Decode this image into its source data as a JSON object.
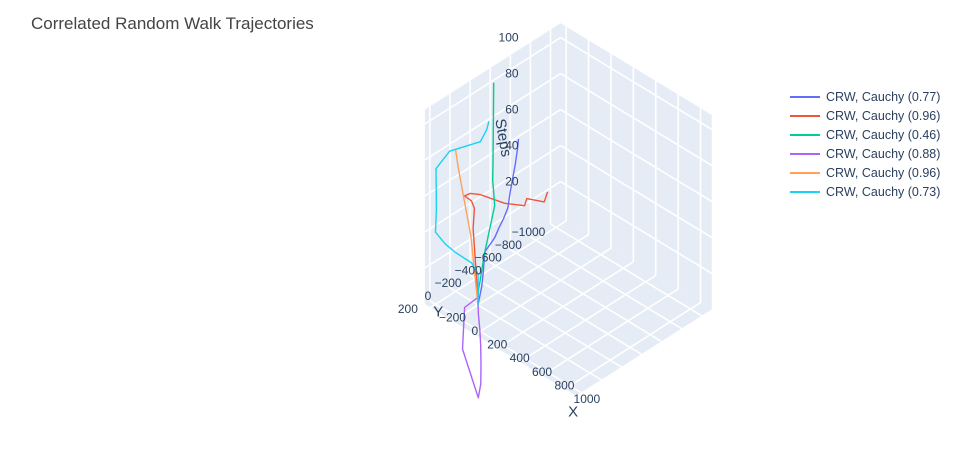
{
  "chart_data": {
    "type": "line3d",
    "title": "Correlated Random Walk Trajectories",
    "xlabel": "X",
    "ylabel": "Y",
    "zlabel": "Steps",
    "x_ticks": [
      "−200",
      "0",
      "200",
      "400",
      "600",
      "800",
      "1000"
    ],
    "y_ticks": [
      "−1000",
      "−800",
      "−600",
      "−400",
      "−200",
      "0",
      "200"
    ],
    "z_ticks": [
      "20",
      "40",
      "60",
      "80",
      "100"
    ],
    "scene_background": "#e5ecf6",
    "grid": true,
    "legend_position": "top-right",
    "series": [
      {
        "name": "CRW, Cauchy (0.77)",
        "color": "#636efa",
        "points": [
          [
            0,
            0,
            0
          ],
          [
            15,
            -20,
            10
          ],
          [
            20,
            -30,
            18
          ],
          [
            40,
            -15,
            25
          ],
          [
            60,
            -5,
            32
          ],
          [
            110,
            0,
            38
          ],
          [
            160,
            10,
            44
          ],
          [
            190,
            5,
            50
          ],
          [
            220,
            -10,
            56
          ],
          [
            240,
            -30,
            62
          ],
          [
            250,
            -40,
            70
          ],
          [
            260,
            -55,
            78
          ],
          [
            270,
            -70,
            86
          ],
          [
            280,
            -80,
            94
          ],
          [
            285,
            -85,
            100
          ]
        ]
      },
      {
        "name": "CRW, Cauchy (0.96)",
        "color": "#ef553b",
        "points": [
          [
            0,
            0,
            0
          ],
          [
            5,
            20,
            15
          ],
          [
            8,
            40,
            30
          ],
          [
            10,
            60,
            45
          ],
          [
            40,
            80,
            58
          ],
          [
            50,
            120,
            64
          ],
          [
            60,
            200,
            70
          ],
          [
            120,
            210,
            74
          ],
          [
            200,
            200,
            76
          ],
          [
            400,
            180,
            78
          ],
          [
            560,
            160,
            82
          ],
          [
            570,
            150,
            86
          ],
          [
            700,
            120,
            88
          ],
          [
            720,
            110,
            94
          ]
        ]
      },
      {
        "name": "CRW, Cauchy (0.46)",
        "color": "#00cc96",
        "points": [
          [
            0,
            0,
            0
          ],
          [
            -5,
            -10,
            8
          ],
          [
            -8,
            -30,
            12
          ],
          [
            -15,
            -80,
            25
          ],
          [
            -120,
            -300,
            40
          ],
          [
            -210,
            -380,
            48
          ],
          [
            -225,
            -400,
            56
          ],
          [
            -230,
            -410,
            80
          ],
          [
            -232,
            -415,
            100
          ]
        ]
      },
      {
        "name": "CRW, Cauchy (0.88)",
        "color": "#ab63fa",
        "points": [
          [
            0,
            0,
            0
          ],
          [
            5,
            0,
            3
          ],
          [
            8,
            5,
            5
          ],
          [
            60,
            200,
            8
          ],
          [
            400,
            600,
            12
          ],
          [
            900,
            1000,
            18
          ],
          [
            940,
            1020,
            28
          ],
          [
            960,
            1040,
            40
          ],
          [
            975,
            1060,
            52
          ],
          [
            985,
            1080,
            62
          ],
          [
            990,
            1100,
            72
          ],
          [
            995,
            1110,
            85
          ]
        ]
      },
      {
        "name": "CRW, Cauchy (0.96)",
        "color": "#ffa15a",
        "points": [
          [
            0,
            0,
            0
          ],
          [
            -5,
            30,
            20
          ],
          [
            -10,
            60,
            40
          ],
          [
            -15,
            100,
            55
          ],
          [
            -20,
            140,
            70
          ],
          [
            -25,
            170,
            82
          ],
          [
            -30,
            190,
            92
          ]
        ]
      },
      {
        "name": "CRW, Cauchy (0.73)",
        "color": "#19d3f3",
        "points": [
          [
            0,
            0,
            0
          ],
          [
            5,
            5,
            8
          ],
          [
            10,
            10,
            18
          ],
          [
            -20,
            40,
            24
          ],
          [
            -100,
            120,
            30
          ],
          [
            -150,
            160,
            34
          ],
          [
            -200,
            200,
            40
          ],
          [
            -210,
            180,
            52
          ],
          [
            -230,
            160,
            64
          ],
          [
            -240,
            150,
            72
          ],
          [
            -200,
            60,
            80
          ],
          [
            -50,
            -80,
            86
          ],
          [
            -30,
            -120,
            92
          ],
          [
            -28,
            -140,
            96
          ]
        ]
      }
    ]
  }
}
